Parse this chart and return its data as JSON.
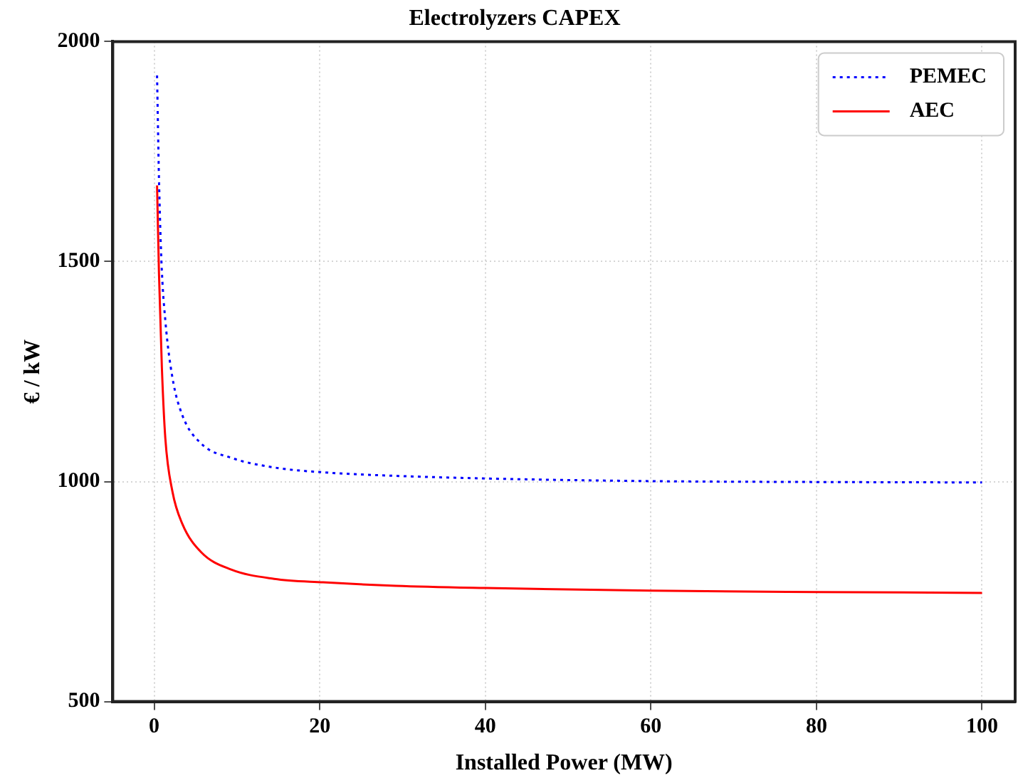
{
  "chart_data": {
    "type": "line",
    "title": "Electrolyzers CAPEX",
    "xlabel": "Installed Power (MW)",
    "ylabel": "€ / kW",
    "xlim": [
      -5,
      104
    ],
    "xticks": [
      0,
      20,
      40,
      60,
      80,
      100
    ],
    "ylim": [
      500,
      2000
    ],
    "yticks": [
      500,
      1000,
      1500,
      2000
    ],
    "grid": true,
    "legend": "top right",
    "marker": "none",
    "series": [
      {
        "name": "PEMEC",
        "color": "#0000ff",
        "line_style": "dotted",
        "x": [
          0.35,
          0.58,
          0.88,
          1.35,
          2.2,
          3.4,
          5.7,
          9.3,
          14.5,
          20.4,
          29.2,
          40,
          60,
          80,
          100
        ],
        "values": [
          1923,
          1690,
          1500,
          1366,
          1237,
          1151,
          1086,
          1054,
          1032,
          1021,
          1013,
          1007,
          1001,
          999,
          998
        ]
      },
      {
        "name": "AEC",
        "color": "#ff0000",
        "line_style": "solid",
        "x": [
          0.35,
          0.58,
          0.93,
          1.35,
          2.2,
          3.4,
          5.7,
          9.3,
          14.5,
          20.4,
          29.2,
          40,
          60,
          80,
          100
        ],
        "values": [
          1673,
          1474,
          1260,
          1098,
          978,
          904,
          839,
          800,
          779,
          771,
          763,
          758,
          752,
          749,
          747
        ]
      }
    ]
  }
}
